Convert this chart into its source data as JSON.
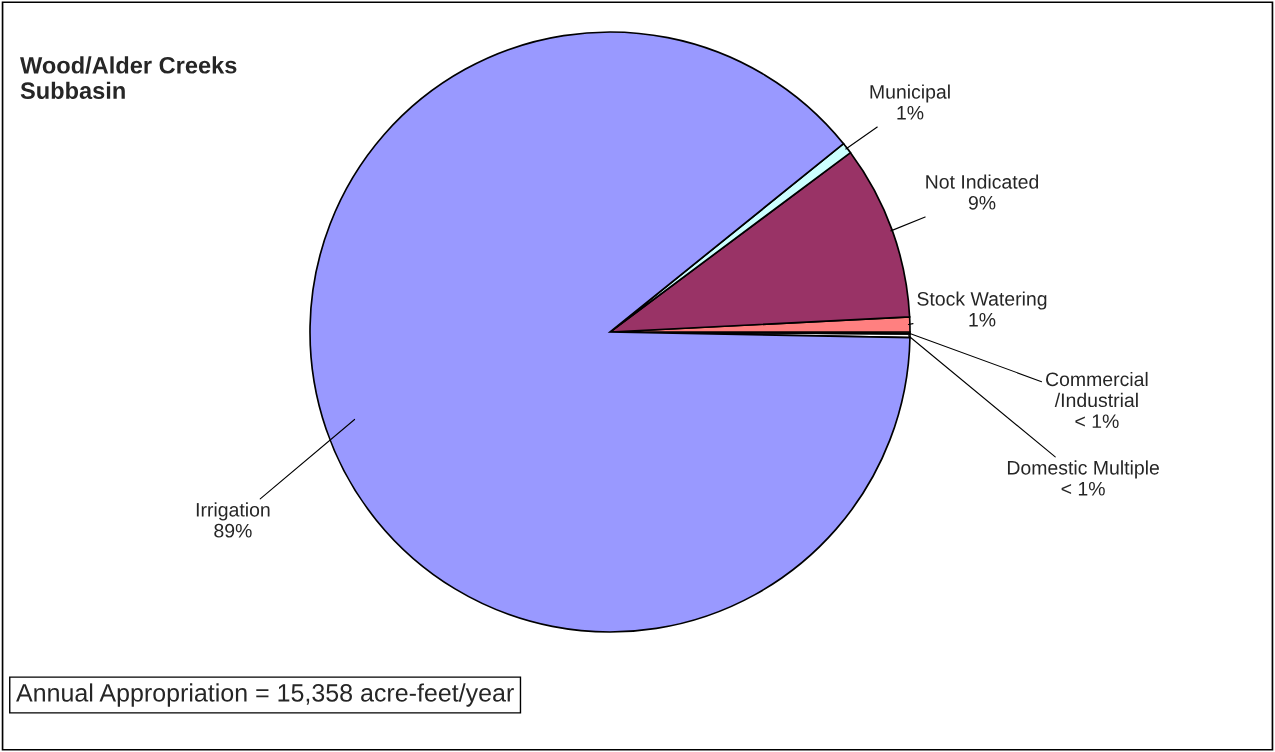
{
  "chart_data": {
    "type": "pie",
    "title": "Wood/Alder Creeks\nSubbasin",
    "categories": [
      "Domestic Multiple",
      "Commercial\n/Industrial",
      "Stock Watering",
      "Not Indicated",
      "Municipal",
      "Irrigation"
    ],
    "values": [
      0.2,
      0.1,
      0.8,
      9.4,
      0.6,
      88.9
    ],
    "value_labels": [
      "< 1%",
      "< 1%",
      "1%",
      "9%",
      "1%",
      "89%"
    ],
    "colors": [
      "#ffffff",
      "#ffffcc",
      "#ff8080",
      "#993366",
      "#ccffff",
      "#9999ff"
    ],
    "annotations": [
      "Annual Appropriation = 15,358 acre-feet/year"
    ]
  }
}
